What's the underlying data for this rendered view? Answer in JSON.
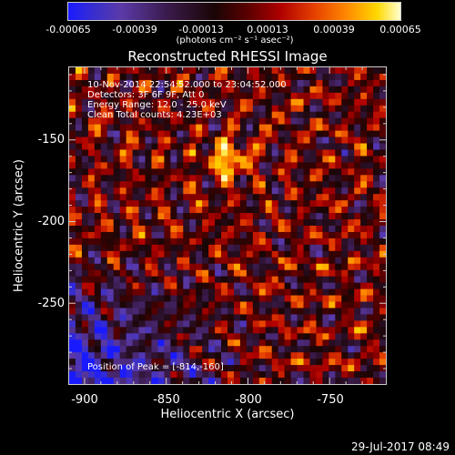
{
  "colorbar": {
    "ticks": [
      "-0.00065",
      "-0.00039",
      "-0.00013",
      "0.00013",
      "0.00039",
      "0.00065"
    ],
    "label": "(photons cm⁻² s⁻¹ asec⁻²)"
  },
  "chart_data": {
    "type": "heatmap",
    "title": "Reconstructed RHESSI Image",
    "xlabel": "Heliocentric X (arcsec)",
    "ylabel": "Heliocentric Y (arcsec)",
    "xlim": [
      -910,
      -715
    ],
    "ylim": [
      -300,
      -105
    ],
    "xticks": [
      "-900",
      "-850",
      "-800",
      "-750"
    ],
    "yticks": [
      "-150",
      "-200",
      "-250"
    ],
    "colorscale": {
      "min": -0.00065,
      "max": 0.00065
    },
    "peak_position": [
      -814,
      -160
    ],
    "total_counts": 4230
  },
  "annotations": {
    "time_range": "10-Nov-2014 22:54:52.000 to 23:04:52.000",
    "detectors": "Detectors: 3F 6F 9F, Att 0",
    "energy": "Energy Range: 12.0 - 25.0 keV",
    "method": "Clean    Total counts: 4.23E+03",
    "peak": "Position of Peak = [-814,-160]"
  },
  "footer": {
    "timestamp": "29-Jul-2017 08:49"
  }
}
